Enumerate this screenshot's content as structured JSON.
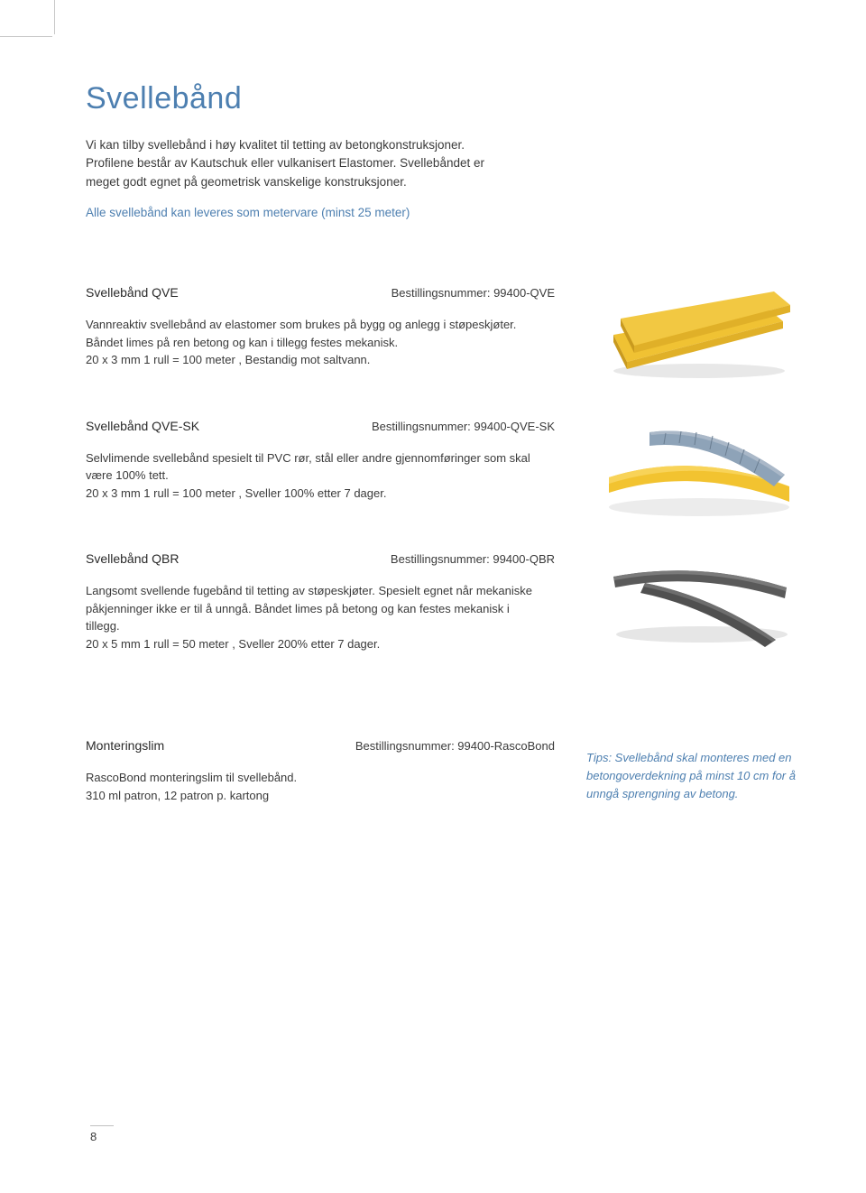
{
  "colors": {
    "heading": "#4d7fb0",
    "body": "#3a3a3a",
    "accent": "#4d7fb0",
    "background": "#ffffff"
  },
  "title": "Svellebånd",
  "intro": "Vi kan tilby svellebånd i høy kvalitet til tetting av betongkonstruksjoner. Profilene består av Kautschuk eller vulkanisert Elastomer. Svellebåndet er meget godt egnet på geometrisk vanskelige konstruksjoner.",
  "intro_note": "Alle svellebånd kan leveres som metervare (minst 25 meter)",
  "products": [
    {
      "name": "Svellebånd QVE",
      "order": "Bestillingsnummer: 99400-QVE",
      "desc": "Vannreaktiv svellebånd av elastomer som brukes på bygg og anlegg i støpeskjøter. Båndet limes på ren betong og kan i tillegg festes mekanisk.\n20 x 3 mm   1 rull = 100 meter , Bestandig mot saltvann."
    },
    {
      "name": "Svellebånd QVE-SK",
      "order": "Bestillingsnummer: 99400-QVE-SK",
      "desc": "Selvlimende svellebånd spesielt til PVC rør, stål eller andre gjennomføringer som skal være 100% tett.\n20 x 3 mm   1 rull = 100 meter , Sveller 100% etter 7 dager."
    },
    {
      "name": "Svellebånd QBR",
      "order": "Bestillingsnummer: 99400-QBR",
      "desc": "Langsomt svellende fugebånd til tetting av støpeskjøter. Spesielt egnet når mekaniske påkjenninger ikke er til å unngå. Båndet limes på betong og kan festes mekanisk i tillegg.\n20 x 5 mm   1 rull = 50 meter , Sveller 200% etter 7 dager."
    },
    {
      "name": "Monteringslim",
      "order": "Bestillingsnummer: 99400-RascoBond",
      "desc": "RascoBond monteringslim til svellebånd.\n310 ml patron, 12 patron p. kartong"
    }
  ],
  "tip": "Tips: Svellebånd skal monteres med en betongoverdekning på minst 10 cm for å unngå sprengning av betong.",
  "page_number": "8",
  "images": {
    "qve": {
      "strip1_color": "#f0c233",
      "strip2_color": "#e8b426",
      "shadow": "#d8d8d8"
    },
    "qve_sk": {
      "yellow": "#f2c330",
      "blue": "#8ea3b8",
      "shadow": "#e0e0e0"
    },
    "qbr": {
      "strip": "#5a5a5a",
      "highlight": "#7a7a7a",
      "shadow": "#dcdcdc"
    }
  }
}
